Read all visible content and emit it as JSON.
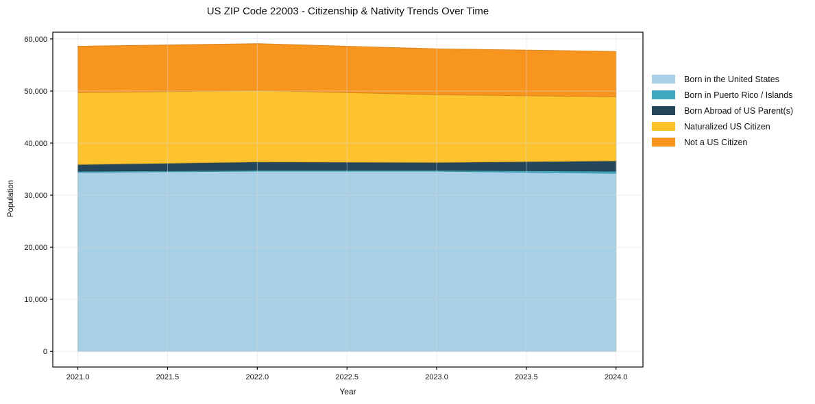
{
  "title": "US ZIP Code 22003 - Citizenship & Nativity Trends Over Time",
  "chart_data": {
    "type": "area",
    "stacked": true,
    "title": "US ZIP Code 22003 - Citizenship & Nativity Trends Over Time",
    "xlabel": "Year",
    "ylabel": "Population",
    "x": [
      2021,
      2022,
      2023,
      2024
    ],
    "xlim": [
      2020.86,
      2024.15
    ],
    "ylim": [
      -3000,
      61300
    ],
    "xticks": [
      2021.0,
      2021.5,
      2022.0,
      2022.5,
      2023.0,
      2023.5,
      2024.0
    ],
    "xtick_labels": [
      "2021.0",
      "2021.5",
      "2022.0",
      "2022.5",
      "2023.0",
      "2023.5",
      "2024.0"
    ],
    "yticks": [
      0,
      10000,
      20000,
      30000,
      40000,
      50000,
      60000
    ],
    "ytick_labels": [
      "0",
      "10,000",
      "20,000",
      "30,000",
      "40,000",
      "50,000",
      "60,000"
    ],
    "grid": true,
    "legend_position": "right-outside",
    "series": [
      {
        "name": "Born in the United States",
        "color": "#a7cfe5",
        "values": [
          34400,
          34600,
          34600,
          34200
        ]
      },
      {
        "name": "Born in Puerto Rico / Islands",
        "color": "#3fa9c2",
        "values": [
          200,
          200,
          200,
          400
        ]
      },
      {
        "name": "Born Abroad of US Parent(s)",
        "color": "#23465a",
        "values": [
          1300,
          1600,
          1500,
          2000
        ]
      },
      {
        "name": "Naturalized US Citizen",
        "color": "#fdc32f",
        "values": [
          13800,
          13700,
          13000,
          12300
        ]
      },
      {
        "name": "Not a US Citizen",
        "color": "#f8951f",
        "values": [
          8900,
          9000,
          8800,
          8700
        ]
      }
    ],
    "stacked_totals": [
      58600,
      59100,
      58100,
      57600
    ],
    "colors": {
      "spine": "#000000",
      "tick_text": "#111111",
      "gridline": "#d9d9d9",
      "plot_background": "#ffffff"
    }
  }
}
